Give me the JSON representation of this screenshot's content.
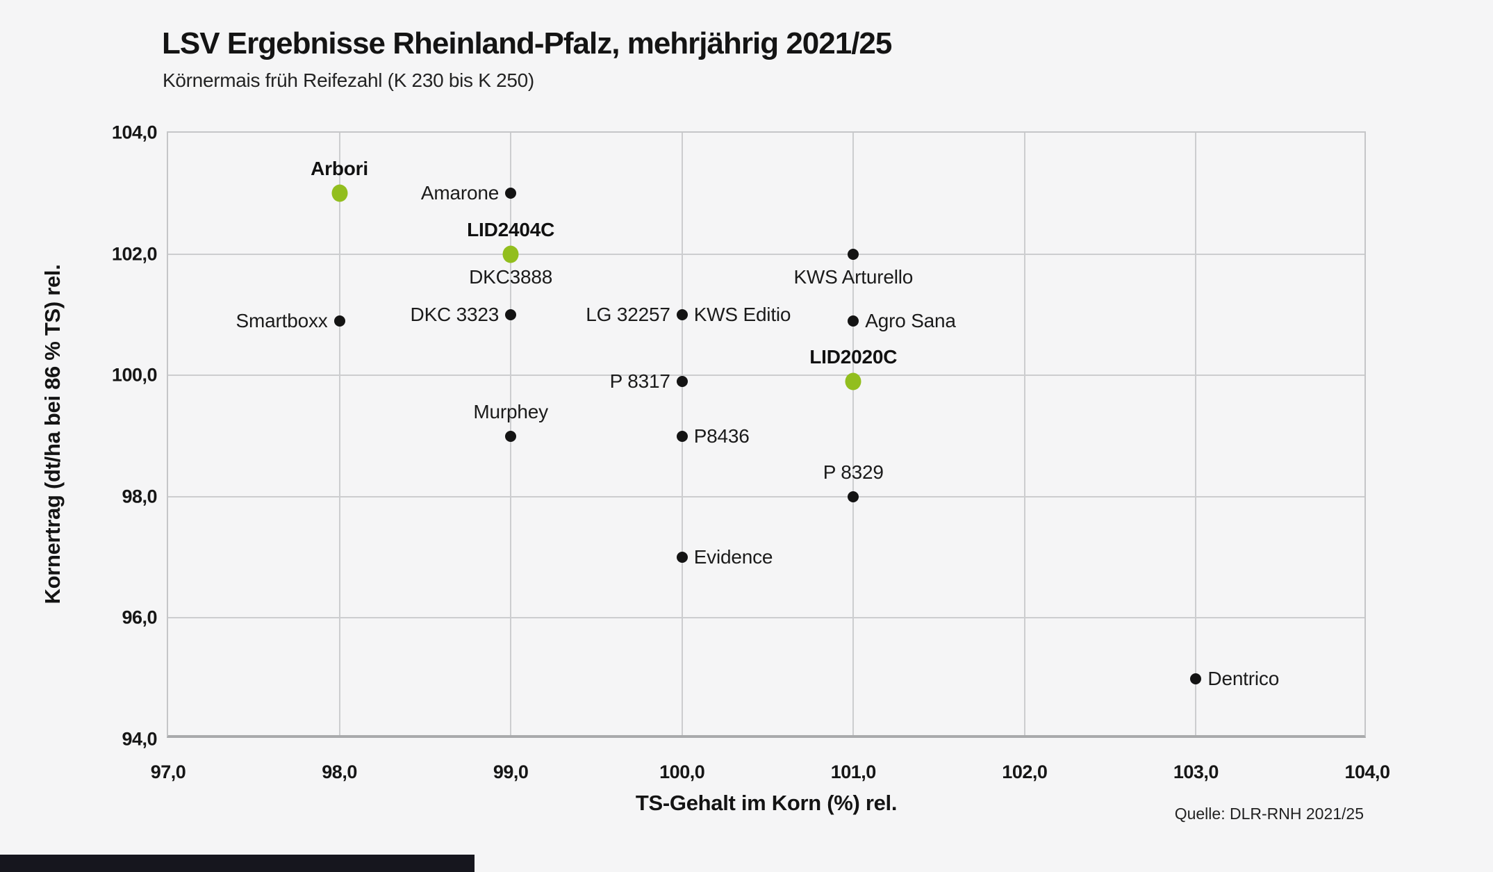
{
  "header": {
    "title": "LSV Ergebnisse Rheinland-Pfalz, mehrjährig 2021/25",
    "subtitle": "Körnermais früh Reifezahl (K 230 bis K 250)"
  },
  "source": "Quelle: DLR-RNH 2021/25",
  "colors": {
    "highlight_green": "#92be1e",
    "point_black": "#141414",
    "background": "#f5f5f6",
    "gridline": "#cccdcf"
  },
  "chart_data": {
    "type": "scatter",
    "title": "LSV Ergebnisse Rheinland-Pfalz, mehrjährig 2021/25",
    "subtitle": "Körnermais früh Reifezahl (K 230 bis K 250)",
    "xlabel": "TS-Gehalt im Korn (%) rel.",
    "ylabel": "Kornertrag (dt/ha bei 86 % TS) rel.",
    "xlim": [
      97.0,
      104.0
    ],
    "ylim": [
      94.0,
      104.0
    ],
    "grid": true,
    "legend": "none",
    "x_ticks": [
      {
        "value": 97,
        "label": "97,0"
      },
      {
        "value": 98,
        "label": "98,0"
      },
      {
        "value": 99,
        "label": "99,0"
      },
      {
        "value": 100,
        "label": "100,0"
      },
      {
        "value": 101,
        "label": "101,0"
      },
      {
        "value": 102,
        "label": "102,0"
      },
      {
        "value": 103,
        "label": "103,0"
      },
      {
        "value": 104,
        "label": "104,0"
      }
    ],
    "y_ticks": [
      {
        "value": 94,
        "label": "94,0"
      },
      {
        "value": 96,
        "label": "96,0"
      },
      {
        "value": 98,
        "label": "98,0"
      },
      {
        "value": 100,
        "label": "100,0"
      },
      {
        "value": 102,
        "label": "102,0"
      },
      {
        "value": 104,
        "label": "104,0"
      }
    ],
    "points": [
      {
        "name": "Arbori",
        "x": 98.0,
        "y": 103.0,
        "color": "green",
        "bold": true,
        "label_pos": "above"
      },
      {
        "name": "Amarone",
        "x": 99.0,
        "y": 103.0,
        "color": "black",
        "bold": false,
        "label_pos": "left"
      },
      {
        "name": "LID2404C",
        "x": 99.0,
        "y": 102.0,
        "color": "green",
        "bold": true,
        "label_pos": "above"
      },
      {
        "name": "DKC3888",
        "x": 99.0,
        "y": 102.0,
        "color": "black",
        "bold": false,
        "label_pos": "below",
        "dot": false
      },
      {
        "name": "KWS Arturello",
        "x": 101.0,
        "y": 102.0,
        "color": "black",
        "bold": false,
        "label_pos": "below"
      },
      {
        "name": "Smartboxx",
        "x": 98.0,
        "y": 100.9,
        "color": "black",
        "bold": false,
        "label_pos": "left"
      },
      {
        "name": "DKC 3323",
        "x": 99.0,
        "y": 101.0,
        "color": "black",
        "bold": false,
        "label_pos": "left"
      },
      {
        "name": "LG 32257",
        "x": 100.0,
        "y": 101.0,
        "color": "black",
        "bold": false,
        "label_pos": "left"
      },
      {
        "name": "KWS Editio",
        "x": 100.0,
        "y": 101.0,
        "color": "black",
        "bold": false,
        "label_pos": "right",
        "dot": false
      },
      {
        "name": "Agro Sana",
        "x": 101.0,
        "y": 100.9,
        "color": "black",
        "bold": false,
        "label_pos": "right"
      },
      {
        "name": "P 8317",
        "x": 100.0,
        "y": 99.9,
        "color": "black",
        "bold": false,
        "label_pos": "left"
      },
      {
        "name": "LID2020C",
        "x": 101.0,
        "y": 99.9,
        "color": "green",
        "bold": true,
        "label_pos": "above"
      },
      {
        "name": "Murphey",
        "x": 99.0,
        "y": 99.0,
        "color": "black",
        "bold": false,
        "label_pos": "above"
      },
      {
        "name": "P8436",
        "x": 100.0,
        "y": 99.0,
        "color": "black",
        "bold": false,
        "label_pos": "right"
      },
      {
        "name": "P 8329",
        "x": 101.0,
        "y": 98.0,
        "color": "black",
        "bold": false,
        "label_pos": "above"
      },
      {
        "name": "Evidence",
        "x": 100.0,
        "y": 97.0,
        "color": "black",
        "bold": false,
        "label_pos": "right"
      },
      {
        "name": "Dentrico",
        "x": 103.0,
        "y": 95.0,
        "color": "black",
        "bold": false,
        "label_pos": "right"
      }
    ]
  }
}
